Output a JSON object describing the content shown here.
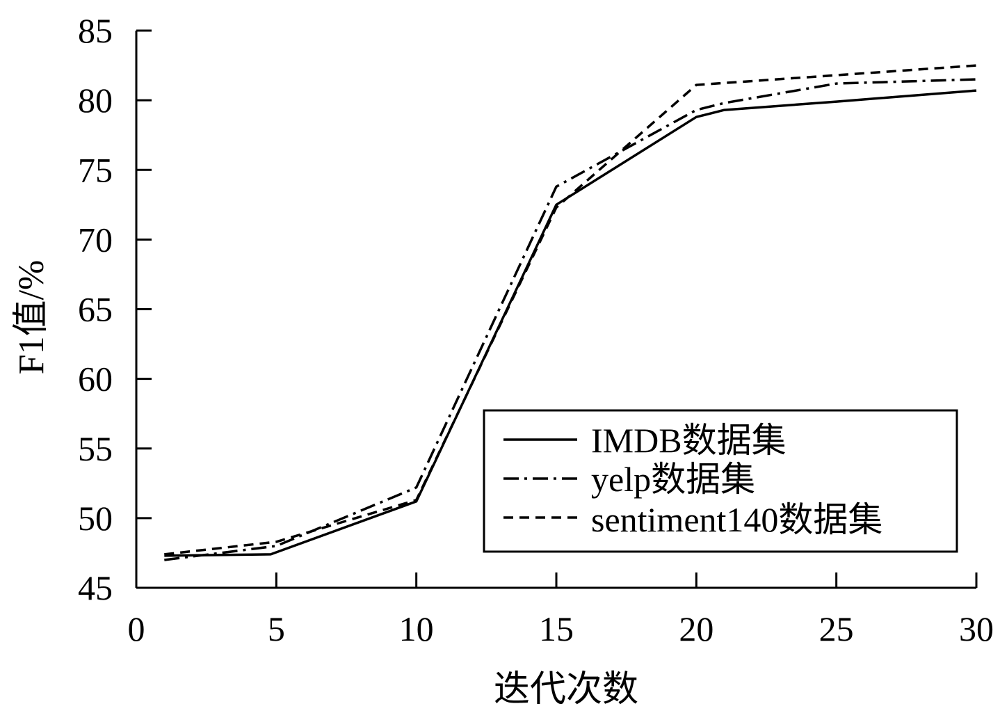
{
  "chart_data": {
    "type": "line",
    "title": "",
    "xlabel": "迭代次数",
    "ylabel": "F1值/%",
    "xlim": [
      0,
      30
    ],
    "ylim": [
      45,
      85
    ],
    "xticks": [
      0,
      5,
      10,
      15,
      20,
      25,
      30
    ],
    "yticks": [
      45,
      50,
      55,
      60,
      65,
      70,
      75,
      80,
      85
    ],
    "grid": false,
    "legend_position": "bottom-right",
    "series": [
      {
        "name": "IMDB数据集",
        "style": "solid",
        "color": "#000000",
        "x": [
          1,
          4.8,
          10,
          15,
          20,
          21,
          25,
          30
        ],
        "y": [
          47.3,
          47.4,
          51.2,
          72.5,
          78.8,
          79.3,
          79.9,
          80.7
        ]
      },
      {
        "name": "yelp数据集",
        "style": "dashdot",
        "color": "#000000",
        "x": [
          1,
          5,
          10,
          15,
          20,
          21,
          25,
          30
        ],
        "y": [
          47.0,
          48.0,
          52.2,
          73.8,
          79.3,
          79.8,
          81.2,
          81.5
        ]
      },
      {
        "name": "sentiment140数据集",
        "style": "dashed",
        "color": "#000000",
        "x": [
          1,
          5,
          10,
          15,
          20,
          25,
          30
        ],
        "y": [
          47.4,
          48.3,
          51.3,
          72.3,
          81.1,
          81.8,
          82.5
        ]
      }
    ]
  }
}
